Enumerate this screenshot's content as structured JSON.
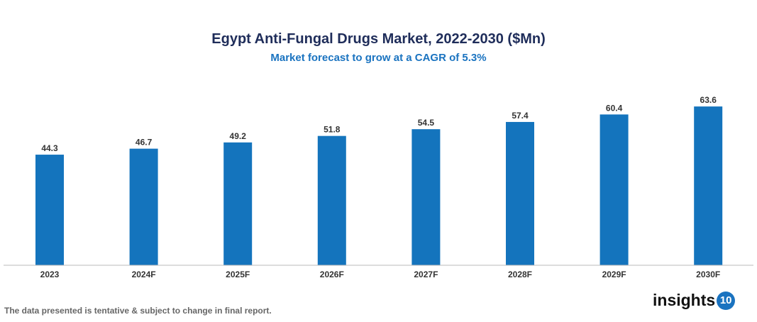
{
  "chart_data": {
    "type": "bar",
    "title": "Egypt Anti-Fungal Drugs Market, 2022-2030 ($Mn)",
    "subtitle": "Market forecast to grow at a CAGR of 5.3%",
    "categories": [
      "2023",
      "2024F",
      "2025F",
      "2026F",
      "2027F",
      "2028F",
      "2029F",
      "2030F"
    ],
    "values": [
      44.3,
      46.7,
      49.2,
      51.8,
      54.5,
      57.4,
      60.4,
      63.6
    ],
    "ylim": [
      0,
      70
    ],
    "grid": false,
    "bar_color": "#1474bd"
  },
  "footer": {
    "note": "The data presented is tentative & subject to change in final report."
  },
  "logo": {
    "text": "insights",
    "badge": "10"
  }
}
